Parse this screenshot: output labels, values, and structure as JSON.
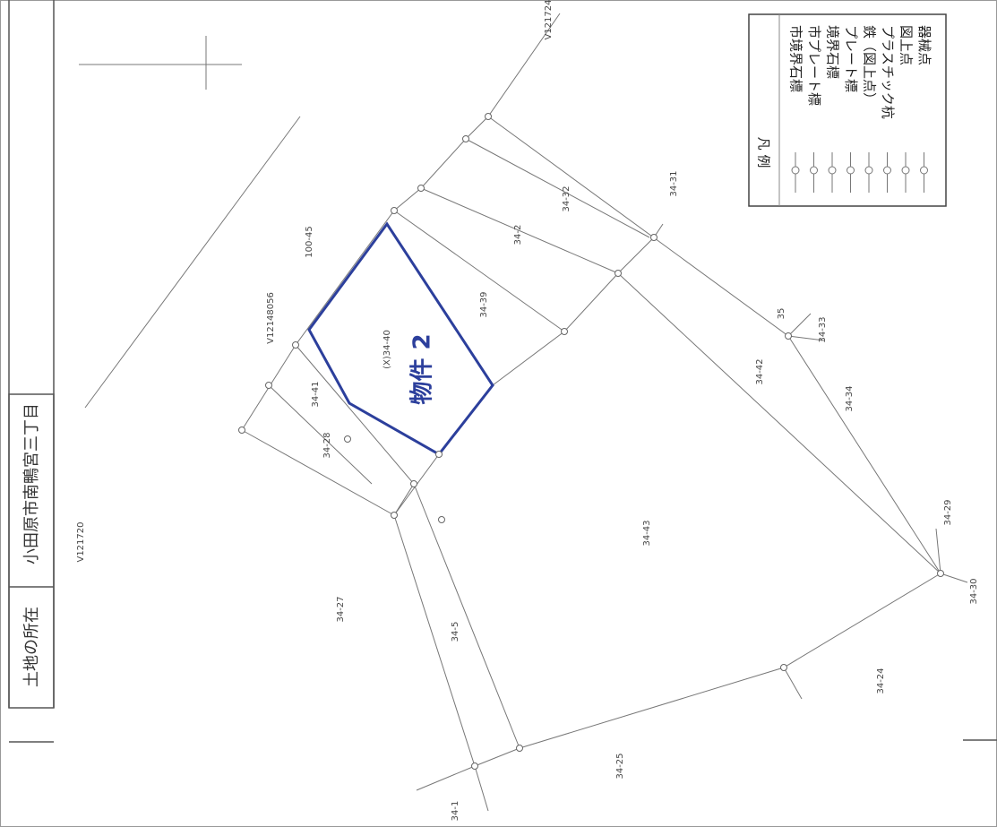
{
  "header": {
    "location_label": "土地の所在",
    "location": "小田原市南鴨宮三丁目"
  },
  "legend": {
    "title": "凡 例",
    "items": [
      "市境界石標",
      "市プレート標",
      "境界石標",
      "プレート標",
      "鉄（図上点）",
      "プラスチック杭",
      "図上点",
      "器械点"
    ]
  },
  "map": {
    "property": "物件 2",
    "labels": [
      "34-31",
      "34-32",
      "34-2",
      "34-39",
      "(X)34-40",
      "34-33",
      "34-34",
      "34-42",
      "34-43",
      "34-27",
      "34-5",
      "34-1",
      "34-25",
      "34-24",
      "34-30",
      "34-29",
      "34-41",
      "34-28",
      "100-45",
      "V121720",
      "V121724",
      "V12148056",
      "35"
    ]
  }
}
